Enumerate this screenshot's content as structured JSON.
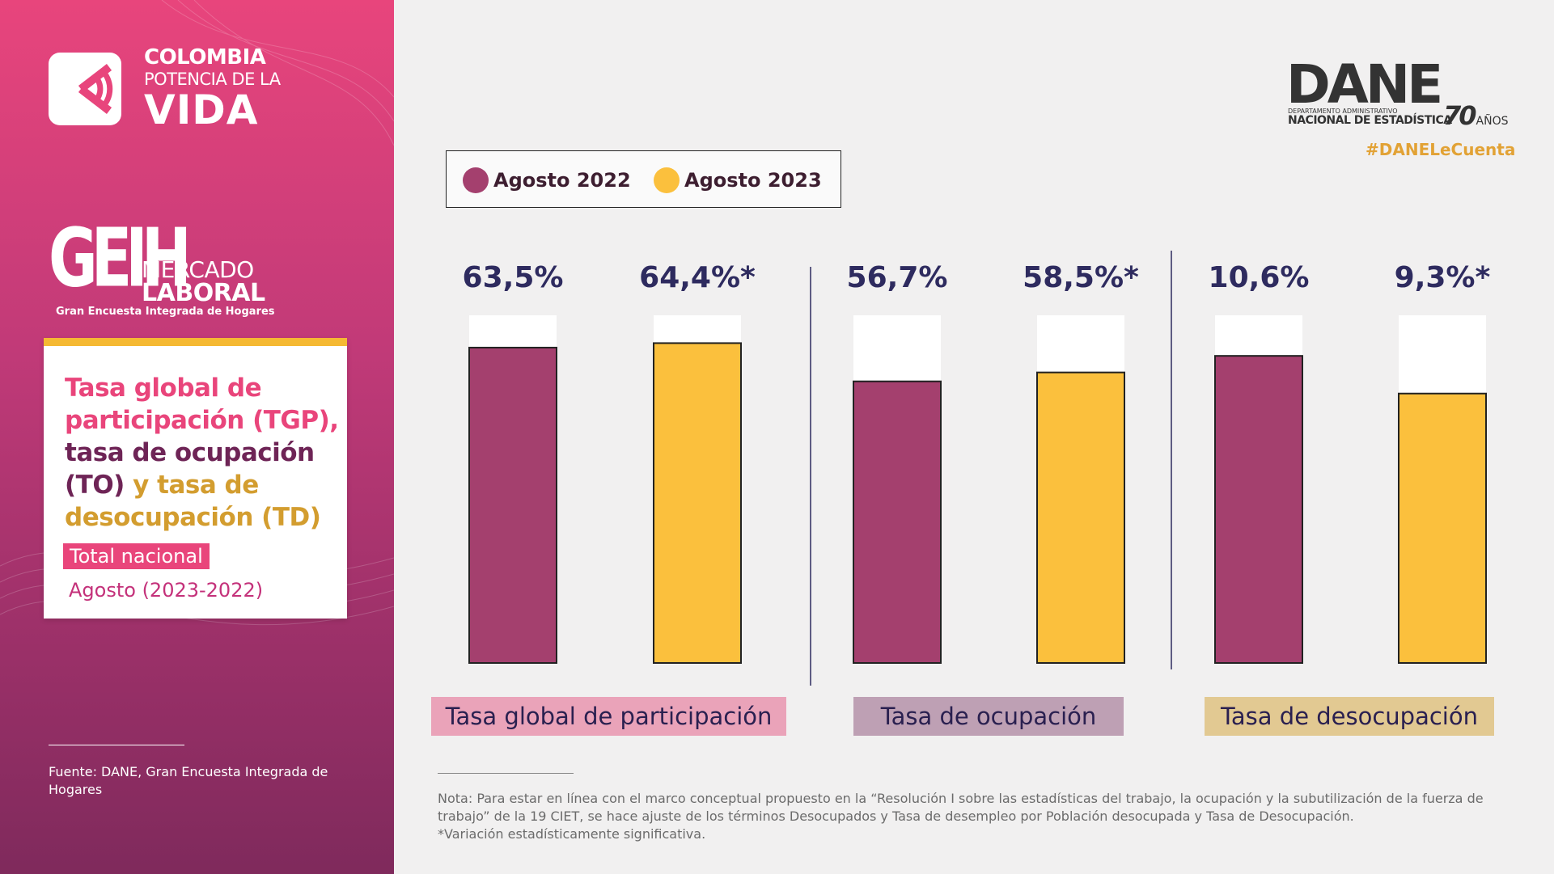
{
  "brand": {
    "line1": "COLOMBIA",
    "line2": "POTENCIA DE LA",
    "line3": "VIDA"
  },
  "geih": {
    "logo": "GEIH",
    "line1": "MERCADO",
    "line2": "LABORAL",
    "subtitle": "Gran Encuesta Integrada de Hogares"
  },
  "card": {
    "title_part1": "Tasa global de participación (TGP),",
    "title_part2": "tasa de ocupación (TO)",
    "title_part3": "y tasa de desocupación (TD)",
    "tag": "Total nacional",
    "period": "Agosto (2023-2022)"
  },
  "source": "Fuente: DANE, Gran Encuesta Integrada de Hogares",
  "dane": {
    "word": "DANE",
    "line1": "DEPARTAMENTO ADMINISTRATIVO",
    "line2": "NACIONAL DE ESTADÍSTICA",
    "years": "70",
    "years_label": "AÑOS",
    "hashtag": "#DANELeCuenta"
  },
  "colors": {
    "series_2022": "#a4406e",
    "series_2023": "#fbc03d",
    "tag_tgp": "#eaa3b9",
    "tag_to": "#bea0b4",
    "tag_td": "#e2c992"
  },
  "chart_data": {
    "type": "bar",
    "categories": [
      "Tasa global de participación",
      "Tasa de ocupación",
      "Tasa de desocupación"
    ],
    "series": [
      {
        "name": "Agosto 2022",
        "values": [
          63.5,
          56.7,
          10.6
        ],
        "labels": [
          "63,5%",
          "56,7%",
          "10,6%"
        ]
      },
      {
        "name": "Agosto 2023",
        "values": [
          64.4,
          58.5,
          9.3
        ],
        "labels": [
          "64,4%*",
          "58,5%*",
          "9,3%*"
        ]
      }
    ],
    "ranges": [
      [
        0,
        70
      ],
      [
        0,
        70
      ],
      [
        0,
        12
      ]
    ],
    "legend": "top-left"
  },
  "note": "Nota: Para estar en línea con el marco conceptual propuesto en la “Resolución I sobre las estadísticas del trabajo, la ocupación y la subutilización de la fuerza de trabajo” de la 19 CIET, se hace ajuste de los términos Desocupados y Tasa de desempleo por Población desocupada y Tasa de Desocupación.",
  "note_sig": "*Variación estadísticamente significativa."
}
